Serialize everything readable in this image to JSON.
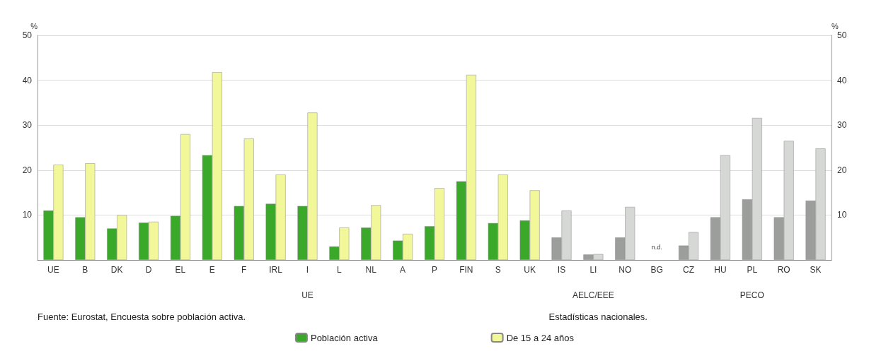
{
  "chart_data": {
    "type": "bar",
    "categories": [
      "UE",
      "B",
      "DK",
      "D",
      "EL",
      "E",
      "F",
      "IRL",
      "I",
      "L",
      "NL",
      "A",
      "P",
      "FIN",
      "S",
      "UK",
      "IS",
      "LI",
      "NO",
      "BG",
      "CZ",
      "HU",
      "PL",
      "RO",
      "SK"
    ],
    "series": [
      {
        "name": "Población activa",
        "color": "#3aa829",
        "colors": [
          "#3aa829",
          "#3aa829",
          "#3aa829",
          "#3aa829",
          "#3aa829",
          "#3aa829",
          "#3aa829",
          "#3aa829",
          "#3aa829",
          "#3aa829",
          "#3aa829",
          "#3aa829",
          "#3aa829",
          "#3aa829",
          "#3aa829",
          "#3aa829",
          "#9c9e9c",
          "#9c9e9c",
          "#9c9e9c",
          "#9c9e9c",
          "#9c9e9c",
          "#9c9e9c",
          "#9c9e9c",
          "#9c9e9c",
          "#9c9e9c"
        ],
        "values": [
          11,
          9.5,
          7,
          8.3,
          9.8,
          23.3,
          12,
          12.5,
          12,
          3,
          7.2,
          4.3,
          7.5,
          17.5,
          8.2,
          8.8,
          5,
          1.2,
          5,
          null,
          3.2,
          9.5,
          13.5,
          9.5,
          13.2
        ]
      },
      {
        "name": "De 15 a 24 años",
        "color": "#f2f79a",
        "colors": [
          "#f2f79a",
          "#f2f79a",
          "#f2f79a",
          "#f2f79a",
          "#f2f79a",
          "#f2f79a",
          "#f2f79a",
          "#f2f79a",
          "#f2f79a",
          "#f2f79a",
          "#f2f79a",
          "#f2f79a",
          "#f2f79a",
          "#f2f79a",
          "#f2f79a",
          "#f2f79a",
          "#d6d8d6",
          "#d6d8d6",
          "#d6d8d6",
          "#d6d8d6",
          "#d6d8d6",
          "#d6d8d6",
          "#d6d8d6",
          "#d6d8d6",
          "#d6d8d6"
        ],
        "values": [
          21.2,
          21.5,
          10,
          8.5,
          28,
          41.8,
          27,
          19,
          32.8,
          7.2,
          12.2,
          5.8,
          16,
          41.2,
          19,
          15.5,
          11,
          1.3,
          11.8,
          null,
          6.2,
          23.3,
          31.6,
          26.5,
          24.8
        ]
      }
    ],
    "ylabel": "%",
    "y2label": "%",
    "ylim": [
      0,
      50
    ],
    "yticks": [
      10,
      20,
      30,
      40,
      50
    ],
    "y2lim": [
      0,
      50
    ],
    "y2ticks": [
      10,
      20,
      30,
      40,
      50
    ],
    "grid": "y",
    "legend": "bottom",
    "annotations": [
      "n.d.",
      "UE",
      "AELC/EEE",
      "PECO",
      "Fuente: Eurostat, Encuesta sobre población activa.",
      "Estadísticas nacionales."
    ]
  }
}
